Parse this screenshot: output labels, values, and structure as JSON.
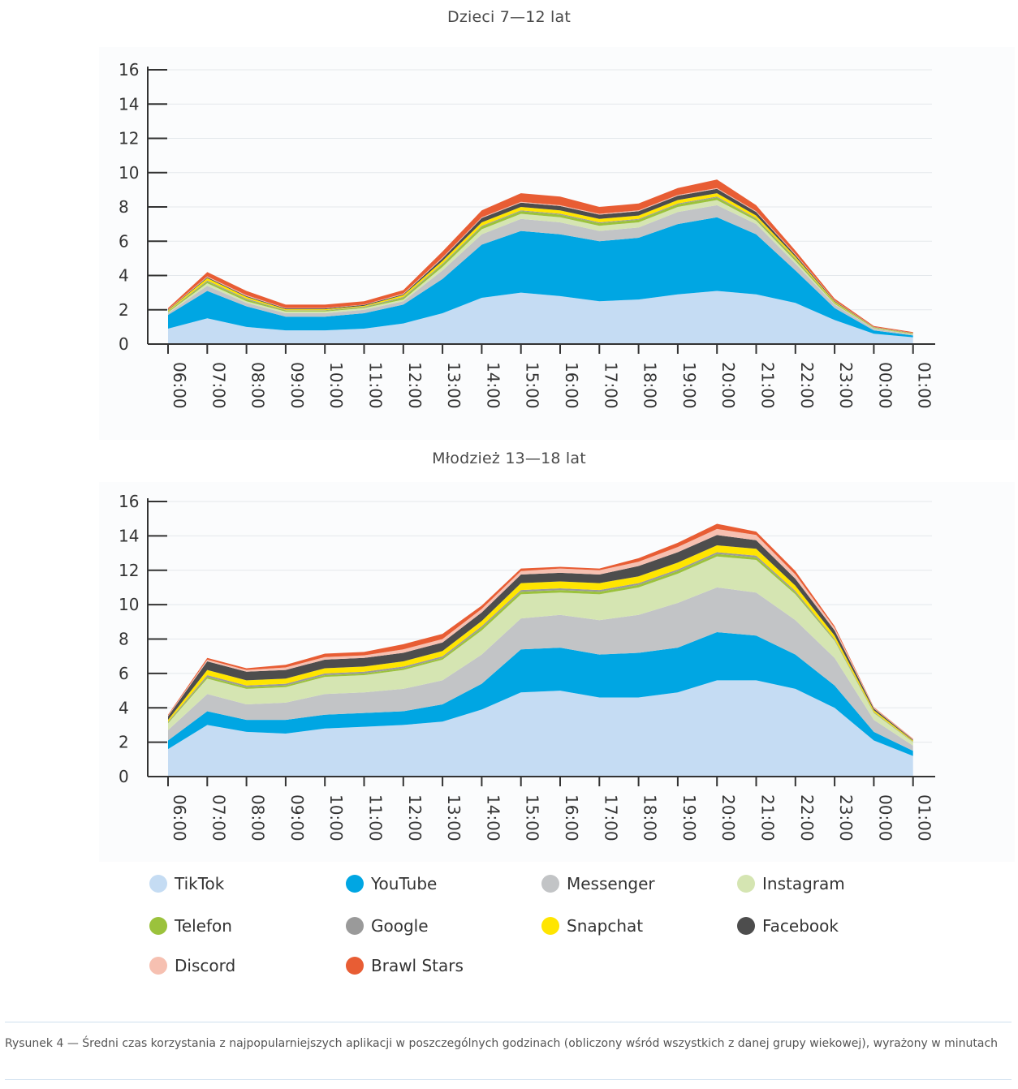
{
  "chart_data": [
    {
      "type": "area",
      "stacked": true,
      "title": "Dzieci 7—12 lat",
      "xlabel": "",
      "ylabel": "",
      "ylim": [
        0,
        16
      ],
      "yticks": [
        0,
        2,
        4,
        6,
        8,
        10,
        12,
        14,
        16
      ],
      "categories": [
        "06:00",
        "07:00",
        "08:00",
        "09:00",
        "10:00",
        "11:00",
        "12:00",
        "13:00",
        "14:00",
        "15:00",
        "16:00",
        "17:00",
        "18:00",
        "19:00",
        "20:00",
        "21:00",
        "22:00",
        "23:00",
        "00:00",
        "01:00"
      ],
      "series": [
        {
          "name": "TikTok",
          "values": [
            0.9,
            1.5,
            1.0,
            0.8,
            0.8,
            0.9,
            1.2,
            1.8,
            2.7,
            3.0,
            2.8,
            2.5,
            2.6,
            2.9,
            3.1,
            2.9,
            2.4,
            1.4,
            0.6,
            0.4
          ]
        },
        {
          "name": "YouTube",
          "values": [
            0.8,
            1.6,
            1.2,
            0.8,
            0.8,
            0.9,
            1.1,
            2.0,
            3.1,
            3.6,
            3.6,
            3.5,
            3.6,
            4.1,
            4.3,
            3.5,
            1.9,
            0.7,
            0.2,
            0.1
          ]
        },
        {
          "name": "Messenger",
          "values": [
            0.1,
            0.3,
            0.2,
            0.2,
            0.2,
            0.2,
            0.2,
            0.5,
            0.6,
            0.7,
            0.7,
            0.6,
            0.6,
            0.7,
            0.7,
            0.6,
            0.4,
            0.2,
            0.1,
            0.05
          ]
        },
        {
          "name": "Instagram",
          "values": [
            0.05,
            0.15,
            0.1,
            0.1,
            0.1,
            0.1,
            0.1,
            0.2,
            0.3,
            0.3,
            0.3,
            0.3,
            0.3,
            0.3,
            0.3,
            0.2,
            0.15,
            0.05,
            0.02,
            0.02
          ]
        },
        {
          "name": "Telefon",
          "values": [
            0.05,
            0.1,
            0.1,
            0.05,
            0.05,
            0.05,
            0.1,
            0.15,
            0.15,
            0.15,
            0.15,
            0.15,
            0.15,
            0.15,
            0.15,
            0.1,
            0.1,
            0.05,
            0.02,
            0.02
          ]
        },
        {
          "name": "Google",
          "values": [
            0.02,
            0.05,
            0.05,
            0.03,
            0.03,
            0.03,
            0.05,
            0.05,
            0.05,
            0.05,
            0.05,
            0.05,
            0.05,
            0.05,
            0.05,
            0.05,
            0.05,
            0.02,
            0.01,
            0.01
          ]
        },
        {
          "name": "Snapchat",
          "values": [
            0.05,
            0.15,
            0.1,
            0.05,
            0.05,
            0.05,
            0.1,
            0.15,
            0.2,
            0.2,
            0.2,
            0.2,
            0.2,
            0.2,
            0.2,
            0.15,
            0.1,
            0.05,
            0.02,
            0.02
          ]
        },
        {
          "name": "Facebook",
          "values": [
            0.03,
            0.05,
            0.05,
            0.05,
            0.05,
            0.05,
            0.05,
            0.15,
            0.25,
            0.25,
            0.25,
            0.25,
            0.25,
            0.25,
            0.25,
            0.2,
            0.1,
            0.05,
            0.02,
            0.02
          ]
        },
        {
          "name": "Discord",
          "values": [
            0.02,
            0.05,
            0.05,
            0.02,
            0.02,
            0.02,
            0.05,
            0.05,
            0.05,
            0.05,
            0.05,
            0.05,
            0.05,
            0.05,
            0.05,
            0.05,
            0.05,
            0.03,
            0.01,
            0.01
          ]
        },
        {
          "name": "Brawl Stars",
          "values": [
            0.08,
            0.25,
            0.25,
            0.2,
            0.2,
            0.2,
            0.2,
            0.35,
            0.4,
            0.5,
            0.5,
            0.4,
            0.4,
            0.4,
            0.5,
            0.35,
            0.2,
            0.1,
            0.05,
            0.05
          ]
        }
      ]
    },
    {
      "type": "area",
      "stacked": true,
      "title": "Młodzież 13—18 lat",
      "xlabel": "",
      "ylabel": "",
      "ylim": [
        0,
        16
      ],
      "yticks": [
        0,
        2,
        4,
        6,
        8,
        10,
        12,
        14,
        16
      ],
      "categories": [
        "06:00",
        "07:00",
        "08:00",
        "09:00",
        "10:00",
        "11:00",
        "12:00",
        "13:00",
        "14:00",
        "15:00",
        "16:00",
        "17:00",
        "18:00",
        "19:00",
        "20:00",
        "21:00",
        "22:00",
        "23:00",
        "00:00",
        "01:00"
      ],
      "series": [
        {
          "name": "TikTok",
          "values": [
            1.6,
            3.0,
            2.6,
            2.5,
            2.8,
            2.9,
            3.0,
            3.2,
            3.9,
            4.9,
            5.0,
            4.6,
            4.6,
            4.9,
            5.6,
            5.6,
            5.1,
            4.0,
            2.1,
            1.2
          ]
        },
        {
          "name": "YouTube",
          "values": [
            0.5,
            0.8,
            0.7,
            0.8,
            0.8,
            0.8,
            0.8,
            1.0,
            1.5,
            2.5,
            2.5,
            2.5,
            2.6,
            2.6,
            2.8,
            2.6,
            2.0,
            1.3,
            0.5,
            0.3
          ]
        },
        {
          "name": "Messenger",
          "values": [
            0.6,
            1.0,
            0.9,
            1.0,
            1.2,
            1.2,
            1.3,
            1.4,
            1.7,
            1.8,
            1.9,
            2.0,
            2.2,
            2.6,
            2.6,
            2.5,
            2.0,
            1.6,
            0.7,
            0.3
          ]
        },
        {
          "name": "Instagram",
          "values": [
            0.4,
            0.9,
            0.9,
            0.9,
            1.0,
            1.0,
            1.1,
            1.2,
            1.4,
            1.4,
            1.3,
            1.5,
            1.6,
            1.7,
            1.8,
            1.9,
            1.5,
            1.0,
            0.4,
            0.2
          ]
        },
        {
          "name": "Telefon",
          "values": [
            0.05,
            0.1,
            0.1,
            0.1,
            0.1,
            0.1,
            0.1,
            0.1,
            0.15,
            0.15,
            0.15,
            0.15,
            0.15,
            0.15,
            0.15,
            0.15,
            0.1,
            0.05,
            0.03,
            0.02
          ]
        },
        {
          "name": "Google",
          "values": [
            0.05,
            0.1,
            0.1,
            0.1,
            0.1,
            0.1,
            0.1,
            0.1,
            0.1,
            0.1,
            0.1,
            0.1,
            0.1,
            0.1,
            0.1,
            0.1,
            0.1,
            0.05,
            0.03,
            0.02
          ]
        },
        {
          "name": "Snapchat",
          "values": [
            0.1,
            0.3,
            0.3,
            0.3,
            0.3,
            0.3,
            0.3,
            0.3,
            0.3,
            0.4,
            0.4,
            0.4,
            0.4,
            0.4,
            0.4,
            0.4,
            0.3,
            0.2,
            0.1,
            0.05
          ]
        },
        {
          "name": "Facebook",
          "values": [
            0.2,
            0.5,
            0.5,
            0.5,
            0.5,
            0.5,
            0.5,
            0.5,
            0.5,
            0.5,
            0.5,
            0.5,
            0.6,
            0.6,
            0.6,
            0.5,
            0.4,
            0.3,
            0.1,
            0.05
          ]
        },
        {
          "name": "Discord",
          "values": [
            0.05,
            0.1,
            0.1,
            0.15,
            0.15,
            0.15,
            0.2,
            0.2,
            0.2,
            0.2,
            0.25,
            0.25,
            0.25,
            0.3,
            0.35,
            0.3,
            0.25,
            0.15,
            0.05,
            0.03
          ]
        },
        {
          "name": "Brawl Stars",
          "values": [
            0.05,
            0.1,
            0.1,
            0.15,
            0.2,
            0.2,
            0.3,
            0.3,
            0.2,
            0.15,
            0.1,
            0.1,
            0.2,
            0.25,
            0.3,
            0.2,
            0.2,
            0.1,
            0.03,
            0.03
          ]
        }
      ]
    }
  ],
  "legend": [
    {
      "name": "TikTok",
      "color": "#c5dcf3"
    },
    {
      "name": "YouTube",
      "color": "#00a6e3"
    },
    {
      "name": "Messenger",
      "color": "#c2c4c6"
    },
    {
      "name": "Instagram",
      "color": "#d5e5b2"
    },
    {
      "name": "Telefon",
      "color": "#9bc23c"
    },
    {
      "name": "Google",
      "color": "#9a9a9a"
    },
    {
      "name": "Snapchat",
      "color": "#ffe500"
    },
    {
      "name": "Facebook",
      "color": "#4d4d4d"
    },
    {
      "name": "Discord",
      "color": "#f6c0b1"
    },
    {
      "name": "Brawl Stars",
      "color": "#e85d34"
    }
  ],
  "caption": "Rysunek 4 — Średni czas korzystania z najpopularniejszych aplikacji w poszczególnych godzinach (obliczony wśród wszystkich z danej grupy wiekowej), wyrażony w minutach"
}
